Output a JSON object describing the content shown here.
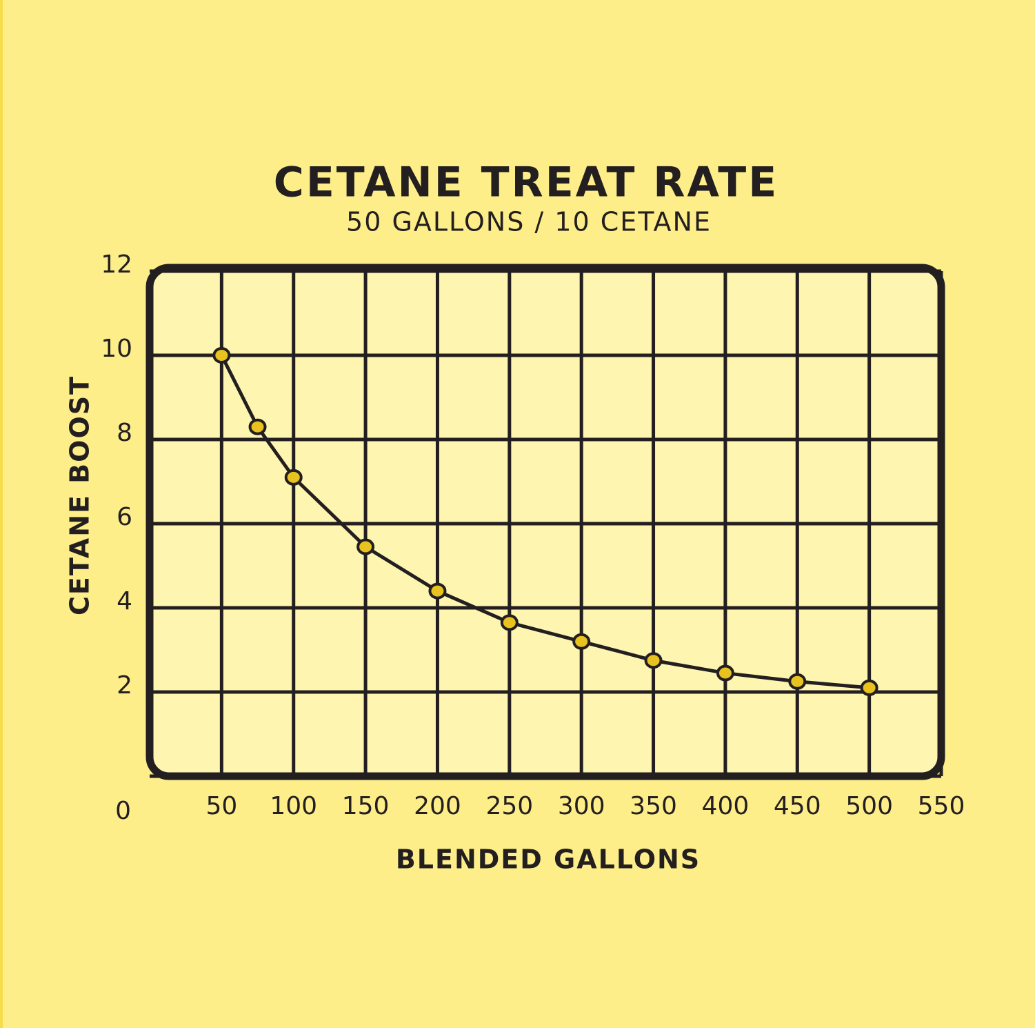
{
  "chart_data": {
    "type": "line",
    "title": "CETANE TREAT RATE",
    "subtitle": "50 GALLONS / 10 CETANE",
    "x_label": "BLENDED GALLONS",
    "y_label": "CETANE BOOST",
    "x": [
      50,
      75,
      100,
      150,
      200,
      250,
      300,
      350,
      400,
      450,
      500
    ],
    "values": [
      10,
      8.3,
      7.1,
      5.45,
      4.4,
      3.65,
      3.2,
      2.75,
      2.45,
      2.25,
      2.1
    ],
    "color": "#231f20",
    "marker_color": "#e8c21f",
    "xlim": [
      0,
      550
    ],
    "xticks": [
      50,
      100,
      150,
      200,
      250,
      300,
      350,
      400,
      450,
      500,
      550
    ],
    "ylim": [
      0,
      12
    ],
    "yticks": [
      0,
      2,
      4,
      6,
      8,
      10,
      12
    ],
    "grid": true
  }
}
